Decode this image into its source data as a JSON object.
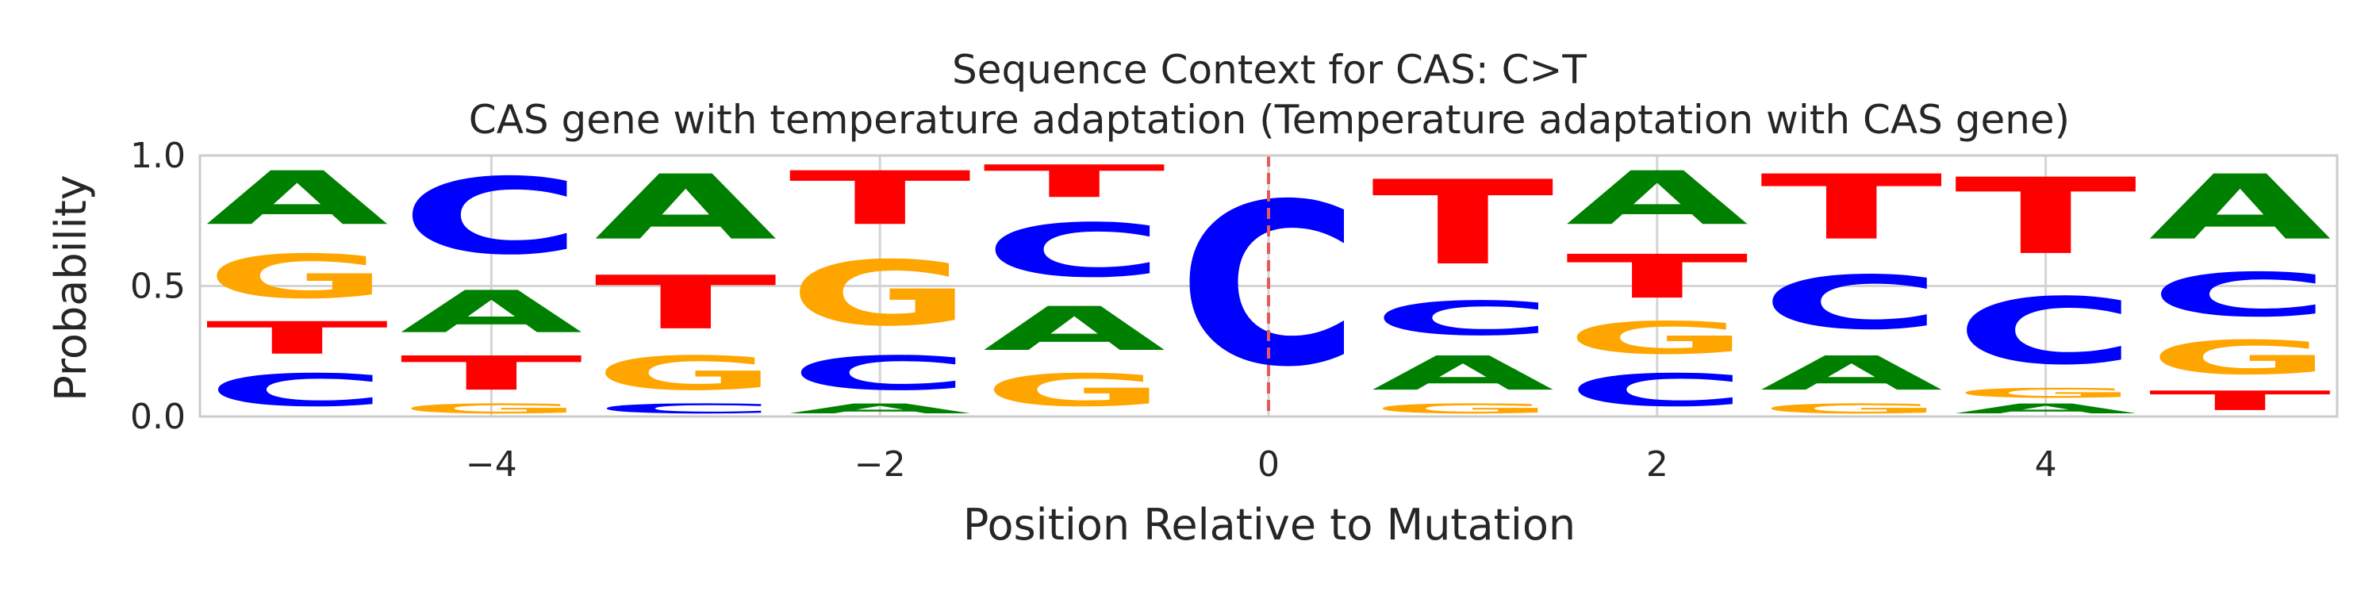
{
  "chart_data": {
    "type": "sequence-logo",
    "title": "Sequence Context for CAS: C>T",
    "subtitle": "CAS gene with temperature adaptation (Temperature adaptation with CAS gene)",
    "xlabel": "Position Relative to Mutation",
    "ylabel": "Probability",
    "xlim": [
      -5.5,
      5.5
    ],
    "ylim": [
      0,
      1
    ],
    "x_ticks": [
      -4,
      -2,
      0,
      2,
      4
    ],
    "x_tick_labels": [
      "−4",
      "−2",
      "0",
      "2",
      "4"
    ],
    "y_ticks": [
      0,
      0.5,
      1
    ],
    "y_tick_labels": [
      "0.0",
      "0.5",
      "1.0"
    ],
    "grid": true,
    "mutation_marker": {
      "position": 0,
      "style": "dashed",
      "color": "#e8575a"
    },
    "colors": {
      "A": "#008000",
      "C": "#0000ff",
      "G": "#ffa500",
      "T": "#ff0000"
    },
    "positions": [
      {
        "pos": -5,
        "stack": [
          [
            "C",
            0.2
          ],
          [
            "T",
            0.2
          ],
          [
            "G",
            0.27
          ],
          [
            "A",
            0.33
          ]
        ]
      },
      {
        "pos": -4,
        "stack": [
          [
            "G",
            0.06
          ],
          [
            "T",
            0.21
          ],
          [
            "A",
            0.26
          ],
          [
            "C",
            0.47
          ]
        ]
      },
      {
        "pos": -3,
        "stack": [
          [
            "C",
            0.06
          ],
          [
            "G",
            0.21
          ],
          [
            "T",
            0.33
          ],
          [
            "A",
            0.4
          ]
        ]
      },
      {
        "pos": -2,
        "stack": [
          [
            "A",
            0.06
          ],
          [
            "C",
            0.21
          ],
          [
            "G",
            0.4
          ],
          [
            "T",
            0.33
          ]
        ]
      },
      {
        "pos": -1,
        "stack": [
          [
            "G",
            0.2
          ],
          [
            "A",
            0.27
          ],
          [
            "C",
            0.33
          ],
          [
            "T",
            0.2
          ]
        ]
      },
      {
        "pos": 0,
        "stack": [
          [
            "C",
            1.0
          ]
        ]
      },
      {
        "pos": 1,
        "stack": [
          [
            "G",
            0.06
          ],
          [
            "A",
            0.21
          ],
          [
            "C",
            0.21
          ],
          [
            "T",
            0.52
          ]
        ]
      },
      {
        "pos": 2,
        "stack": [
          [
            "C",
            0.2
          ],
          [
            "G",
            0.2
          ],
          [
            "T",
            0.27
          ],
          [
            "A",
            0.33
          ]
        ]
      },
      {
        "pos": 3,
        "stack": [
          [
            "G",
            0.06
          ],
          [
            "A",
            0.21
          ],
          [
            "C",
            0.33
          ],
          [
            "T",
            0.4
          ]
        ]
      },
      {
        "pos": 4,
        "stack": [
          [
            "A",
            0.06
          ],
          [
            "G",
            0.06
          ],
          [
            "C",
            0.41
          ],
          [
            "T",
            0.47
          ]
        ]
      },
      {
        "pos": 5,
        "stack": [
          [
            "T",
            0.12
          ],
          [
            "G",
            0.21
          ],
          [
            "C",
            0.27
          ],
          [
            "A",
            0.4
          ]
        ]
      }
    ]
  }
}
